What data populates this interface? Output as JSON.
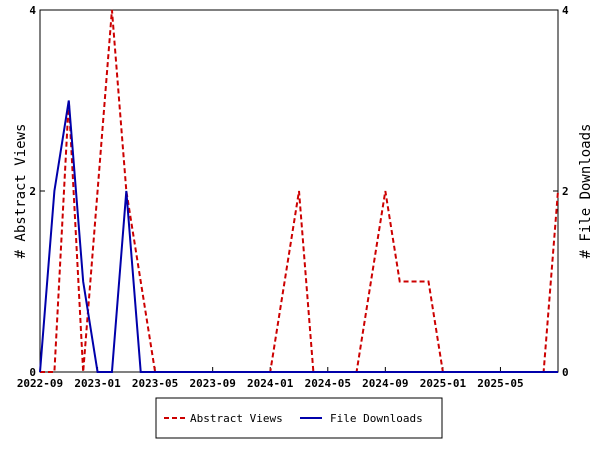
{
  "chart_data": {
    "type": "line",
    "x": [
      "2022-09",
      "2022-10",
      "2022-11",
      "2022-12",
      "2023-01",
      "2023-02",
      "2023-03",
      "2023-04",
      "2023-05",
      "2023-06",
      "2023-07",
      "2023-08",
      "2023-09",
      "2023-10",
      "2023-11",
      "2023-12",
      "2024-01",
      "2024-02",
      "2024-03",
      "2024-04",
      "2024-05",
      "2024-06",
      "2024-07",
      "2024-08",
      "2024-09",
      "2024-10",
      "2024-11",
      "2024-12",
      "2025-01",
      "2025-02",
      "2025-03",
      "2025-04",
      "2025-05",
      "2025-06",
      "2025-07",
      "2025-08",
      "2025-09"
    ],
    "x_ticks": [
      "2022-09",
      "2023-01",
      "2023-05",
      "2023-09",
      "2024-01",
      "2024-05",
      "2024-09",
      "2025-01",
      "2025-05"
    ],
    "series": [
      {
        "name": "Abstract Views",
        "axis": "left",
        "color": "#cc0000",
        "dash": "dashed",
        "values": [
          0,
          0,
          3,
          0,
          2,
          4,
          2,
          1,
          0,
          0,
          0,
          0,
          0,
          0,
          0,
          0,
          0,
          1,
          2,
          0,
          0,
          0,
          0,
          1,
          2,
          1,
          1,
          1,
          0,
          0,
          0,
          0,
          0,
          0,
          0,
          0,
          2
        ]
      },
      {
        "name": "File Downloads",
        "axis": "right",
        "color": "#0000aa",
        "dash": "solid",
        "values": [
          0,
          2,
          3,
          1,
          0,
          0,
          2,
          0,
          0,
          0,
          0,
          0,
          0,
          0,
          0,
          0,
          0,
          0,
          0,
          0,
          0,
          0,
          0,
          0,
          0,
          0,
          0,
          0,
          0,
          0,
          0,
          0,
          0,
          0,
          0,
          0,
          0
        ]
      }
    ],
    "ylabel": "# Abstract Views",
    "y2label": "# File Downloads",
    "ylim": [
      0,
      4
    ],
    "y2lim": [
      0,
      4
    ],
    "y_ticks": [
      "0",
      "2",
      "4"
    ],
    "y2_ticks": [
      "0",
      "2",
      "4"
    ],
    "grid": false,
    "legend": "bottom-center"
  }
}
